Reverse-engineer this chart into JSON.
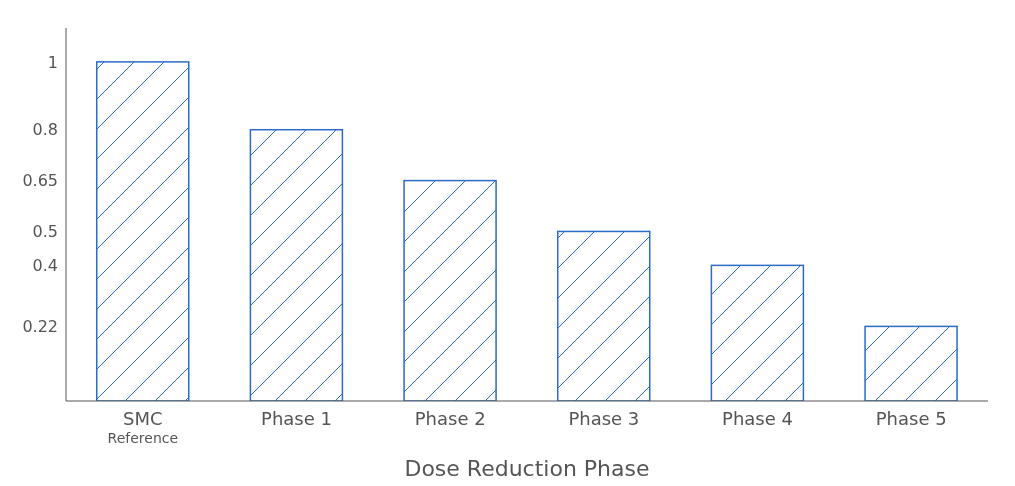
{
  "chart_data": {
    "type": "bar",
    "categories": [
      "SMC\nReference",
      "Phase 1",
      "Phase 2",
      "Phase 3",
      "Phase 4",
      "Phase 5"
    ],
    "values": [
      1,
      0.8,
      0.65,
      0.5,
      0.4,
      0.22
    ],
    "color": "#2b6cc4",
    "xlabel": "Dose Reduction Phase",
    "ylim": [
      0,
      1.1
    ],
    "yticks": [
      0.22,
      0.4,
      0.5,
      0.65,
      0.8,
      1
    ]
  }
}
